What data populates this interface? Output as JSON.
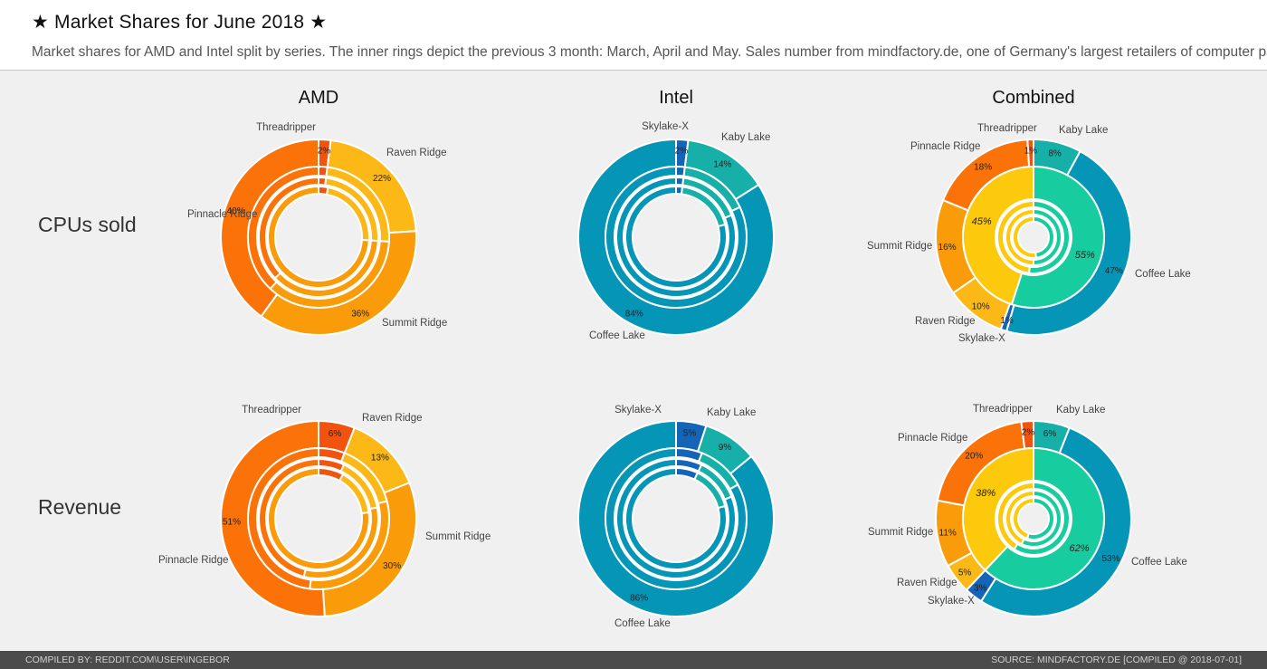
{
  "header": {
    "title": "★ Market Shares for June 2018 ★",
    "subtitle": "Market shares for AMD and Intel split by series. The inner rings depict the previous 3 month: March, April and May. Sales number from mindfactory.de, one of Germany's largest retailers of computer parts."
  },
  "columns": [
    "AMD",
    "Intel",
    "Combined"
  ],
  "rows": [
    "CPUs sold",
    "Revenue"
  ],
  "footer": {
    "left": "COMPILED BY: REDDIT.COM\\USER\\INGEBOR",
    "right": "SOURCE: MINDFACTORY.DE [COMPILED @ 2018-07-01]"
  },
  "colors": {
    "Threadripper": "#f25410",
    "Raven Ridge": "#fbb816",
    "Summit Ridge": "#fa9b0a",
    "Pinnacle Ridge": "#fb7208",
    "Skylake-X": "#1465b8",
    "Kaby Lake": "#16b0a8",
    "Coffee Lake": "#0595b6",
    "AMD total": "#fcc90c",
    "Intel total": "#17cc9e",
    "background": "#f0f0f0"
  },
  "chart_data": [
    {
      "type": "donut",
      "title": "AMD",
      "row": "CPUs sold",
      "categories": [
        "Threadripper",
        "Raven Ridge",
        "Summit Ridge",
        "Pinnacle Ridge"
      ],
      "labels": [
        "2%",
        "22%",
        "36%",
        "40%"
      ],
      "values": [
        2,
        22,
        36,
        40
      ],
      "inner_rings": [
        {
          "name": "May",
          "values": [
            2,
            24,
            36,
            38
          ]
        },
        {
          "name": "April",
          "values": [
            2,
            24,
            37,
            37
          ]
        },
        {
          "name": "March",
          "values": [
            3,
            23,
            74,
            0
          ]
        }
      ]
    },
    {
      "type": "donut",
      "title": "Intel",
      "row": "CPUs sold",
      "categories": [
        "Skylake-X",
        "Kaby Lake",
        "Coffee Lake"
      ],
      "labels": [
        "2%",
        "14%",
        "84%"
      ],
      "values": [
        2,
        14,
        84
      ],
      "inner_rings": [
        {
          "name": "May",
          "values": [
            2,
            16,
            82
          ]
        },
        {
          "name": "April",
          "values": [
            2,
            17,
            81
          ]
        },
        {
          "name": "March",
          "values": [
            2,
            19,
            79
          ]
        }
      ]
    },
    {
      "type": "donut",
      "title": "Combined",
      "row": "CPUs sold",
      "categories": [
        "Kaby Lake",
        "Coffee Lake",
        "Skylake-X",
        "Raven Ridge",
        "Summit Ridge",
        "Pinnacle Ridge",
        "Threadripper"
      ],
      "labels": [
        "8%",
        "47%",
        "1%",
        "10%",
        "16%",
        "18%",
        "1%"
      ],
      "values": [
        8,
        47,
        1,
        10,
        16,
        18,
        1
      ],
      "total_ring": {
        "categories": [
          "Intel",
          "AMD"
        ],
        "labels": [
          "55%",
          "45%"
        ],
        "values": [
          55,
          45
        ]
      },
      "inner_rings": [
        {
          "name": "May",
          "values": [
            52,
            48
          ]
        },
        {
          "name": "April",
          "values": [
            50,
            50
          ]
        },
        {
          "name": "March",
          "values": [
            48,
            52
          ]
        }
      ]
    },
    {
      "type": "donut",
      "title": "AMD",
      "row": "Revenue",
      "categories": [
        "Threadripper",
        "Raven Ridge",
        "Summit Ridge",
        "Pinnacle Ridge"
      ],
      "labels": [
        "6%",
        "13%",
        "30%",
        "51%"
      ],
      "values": [
        6,
        13,
        30,
        51
      ],
      "inner_rings": [
        {
          "name": "May",
          "values": [
            6,
            15,
            31,
            48
          ]
        },
        {
          "name": "April",
          "values": [
            7,
            15,
            32,
            46
          ]
        },
        {
          "name": "March",
          "values": [
            8,
            15,
            77,
            0
          ]
        }
      ]
    },
    {
      "type": "donut",
      "title": "Intel",
      "row": "Revenue",
      "categories": [
        "Skylake-X",
        "Kaby Lake",
        "Coffee Lake"
      ],
      "labels": [
        "5%",
        "9%",
        "86%"
      ],
      "values": [
        5,
        9,
        86
      ],
      "inner_rings": [
        {
          "name": "May",
          "values": [
            6,
            11,
            83
          ]
        },
        {
          "name": "April",
          "values": [
            7,
            12,
            81
          ]
        },
        {
          "name": "March",
          "values": [
            7,
            14,
            79
          ]
        }
      ]
    },
    {
      "type": "donut",
      "title": "Combined",
      "row": "Revenue",
      "categories": [
        "Kaby Lake",
        "Coffee Lake",
        "Skylake-X",
        "Raven Ridge",
        "Summit Ridge",
        "Pinnacle Ridge",
        "Threadripper"
      ],
      "labels": [
        "6%",
        "53%",
        "3%",
        "5%",
        "11%",
        "20%",
        "2%"
      ],
      "values": [
        6,
        53,
        3,
        5,
        11,
        20,
        2
      ],
      "total_ring": {
        "categories": [
          "Intel",
          "AMD"
        ],
        "labels": [
          "62%",
          "38%"
        ],
        "values": [
          62,
          38
        ]
      },
      "inner_rings": [
        {
          "name": "May",
          "values": [
            59,
            41
          ]
        },
        {
          "name": "April",
          "values": [
            57,
            43
          ]
        },
        {
          "name": "March",
          "values": [
            55,
            45
          ]
        }
      ]
    }
  ]
}
